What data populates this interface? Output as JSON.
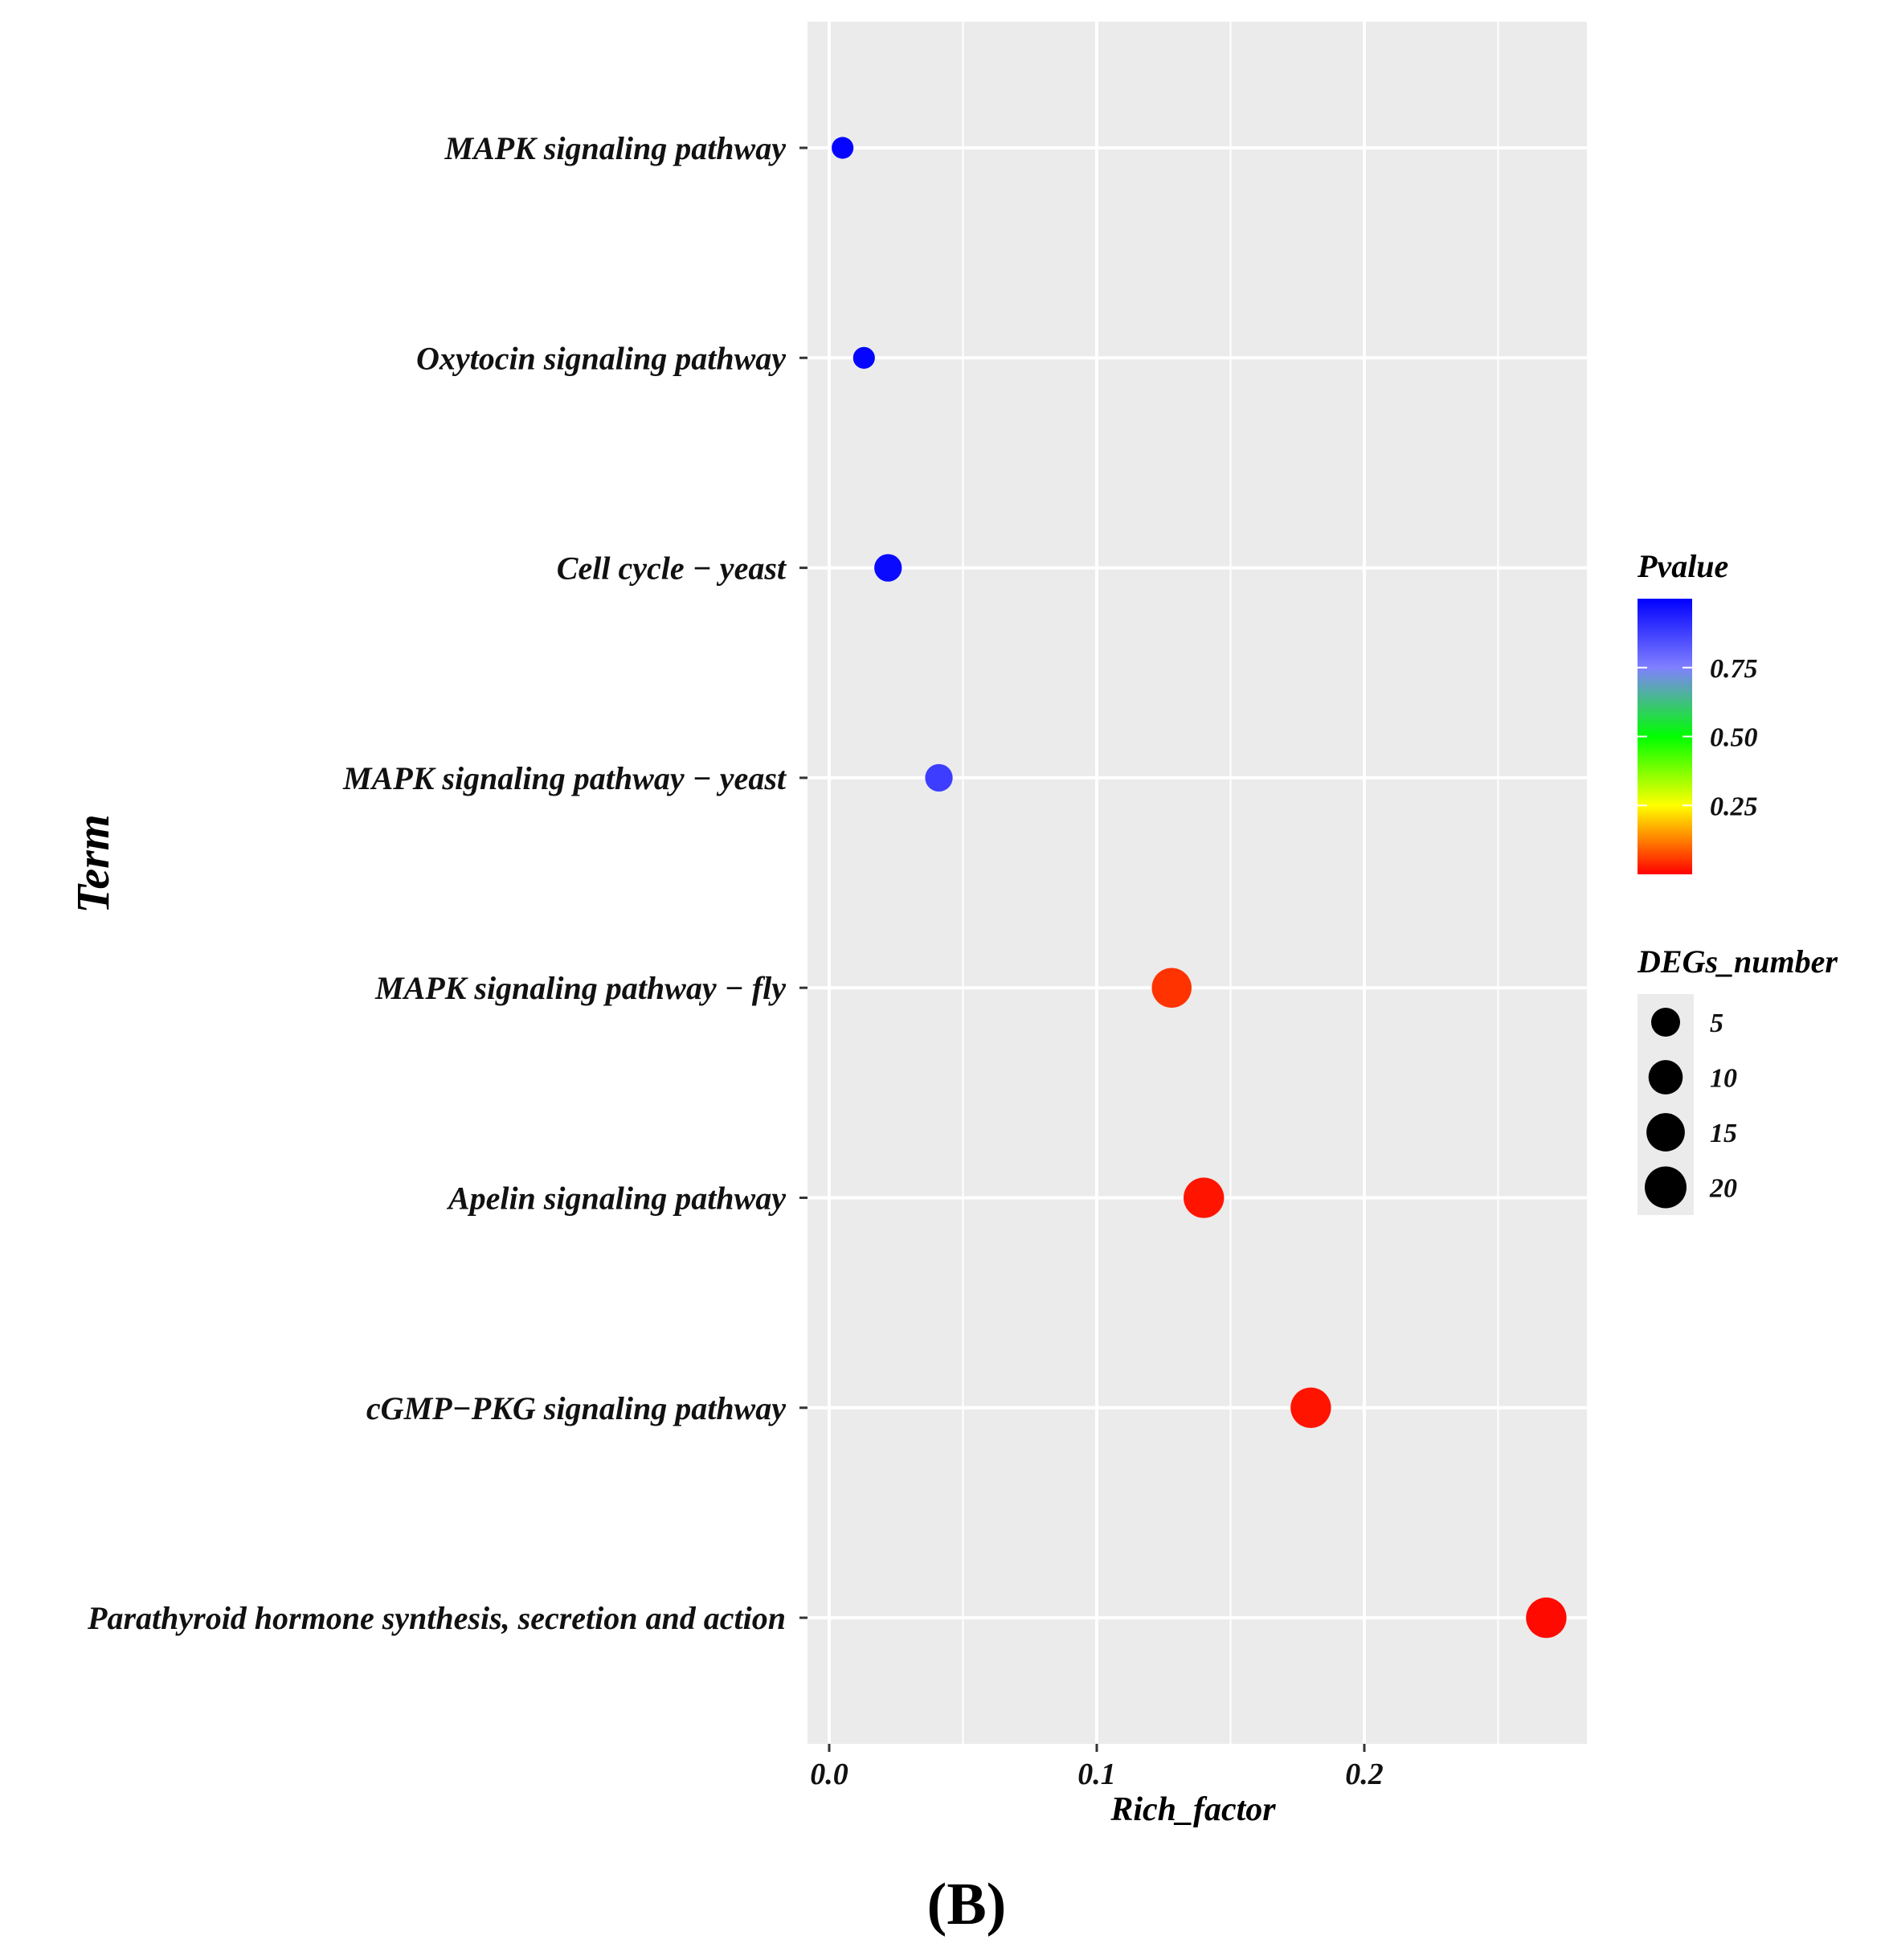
{
  "chart_data": {
    "type": "scatter",
    "xlabel": "Rich_factor",
    "ylabel": "Term",
    "xlim": [
      -0.008,
      0.282
    ],
    "x_ticks": [
      0.0,
      0.1,
      0.2
    ],
    "x_tick_labels": [
      "0.0",
      "0.1",
      "0.2"
    ],
    "grid": true,
    "panel_background": "#ebebeb",
    "panel_label": "(B)",
    "points": [
      {
        "term": "MAPK signaling pathway",
        "rich_factor": 0.005,
        "pvalue": 0.99,
        "degs_number": 1
      },
      {
        "term": "Oxytocin signaling pathway",
        "rich_factor": 0.013,
        "pvalue": 0.99,
        "degs_number": 1
      },
      {
        "term": "Cell cycle − yeast",
        "rich_factor": 0.022,
        "pvalue": 0.98,
        "degs_number": 4
      },
      {
        "term": "MAPK signaling pathway − yeast",
        "rich_factor": 0.041,
        "pvalue": 0.88,
        "degs_number": 4
      },
      {
        "term": "MAPK signaling pathway − fly",
        "rich_factor": 0.128,
        "pvalue": 0.05,
        "degs_number": 17
      },
      {
        "term": "Apelin signaling pathway",
        "rich_factor": 0.14,
        "pvalue": 0.02,
        "degs_number": 18
      },
      {
        "term": "cGMP−PKG signaling pathway",
        "rich_factor": 0.18,
        "pvalue": 0.02,
        "degs_number": 18
      },
      {
        "term": "Parathyroid hormone synthesis, secretion and action",
        "rich_factor": 0.268,
        "pvalue": 0.01,
        "degs_number": 18
      }
    ],
    "legend_color": {
      "title": "Pvalue",
      "range": [
        0.0,
        1.0
      ],
      "ticks": [
        0.75,
        0.5,
        0.25
      ],
      "tick_labels": [
        "0.75",
        "0.50",
        "0.25"
      ],
      "colors": [
        "#ff0000",
        "#ffff00",
        "#00ff00",
        "#8080ff",
        "#0000ff"
      ]
    },
    "legend_size": {
      "title": "DEGs_number",
      "values": [
        5,
        10,
        15,
        20
      ],
      "labels": [
        "5",
        "10",
        "15",
        "20"
      ],
      "color": "#000000"
    }
  }
}
